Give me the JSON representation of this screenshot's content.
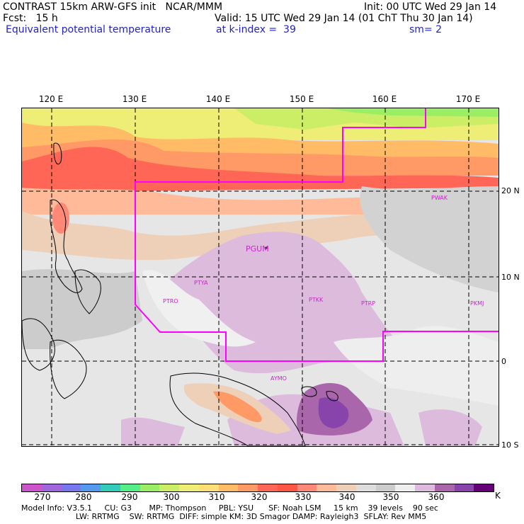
{
  "header": {
    "line1_left": "CONTRAST 15km ARW-GFS init   NCAR/MMM",
    "line1_right": "Init: 00 UTC Wed 29 Jan 14",
    "line2_left": "Fcst:   15 h",
    "line2_right": "Valid: 15 UTC Wed 29 Jan 14 (01 ChT Thu 30 Jan 14)",
    "line3_field": "Equivalent potential temperature",
    "line3_level": "at k-index =  39",
    "line3_smooth": "sm= 2"
  },
  "map": {
    "lon_labels": [
      "120 E",
      "130 E",
      "140 E",
      "150 E",
      "160 E",
      "170 E"
    ],
    "lat_labels": [
      "20 N",
      "10 N",
      "0",
      "10 S"
    ],
    "stations": [
      "PWAK",
      "PGUM",
      "PTYA",
      "PTRO",
      "PTKK",
      "PTRP",
      "PKMJ",
      "AYMO"
    ]
  },
  "colorbar": {
    "tick_labels": [
      "270",
      "280",
      "290",
      "300",
      "310",
      "320",
      "330",
      "340",
      "350",
      "360"
    ],
    "unit": "K",
    "colors": [
      "#cc55cc",
      "#a066dd",
      "#7777ee",
      "#5599ee",
      "#33ccbb",
      "#55ee88",
      "#99ee66",
      "#ccee66",
      "#eeee77",
      "#ffdd77",
      "#ffbb66",
      "#ff9966",
      "#ff6655",
      "#ff5544",
      "#ff8877",
      "#ffbb99",
      "#eecfb8",
      "#dddddd",
      "#cccccc",
      "#eeeeee",
      "#ddbbdd",
      "#aa66aa",
      "#8844aa",
      "#660077"
    ]
  },
  "footer": {
    "line1": "Model Info: V3.5.1     CU: G3       MP: Thompson     PBL: YSU      SF: Noah LSM     15 km    39 levels    90 sec",
    "line2": "                      LW: RRTMG    SW: RRTMG  DIFF: simple KM: 3D Smagor DAMP: Rayleigh3  SFLAY: Rev MM5"
  }
}
